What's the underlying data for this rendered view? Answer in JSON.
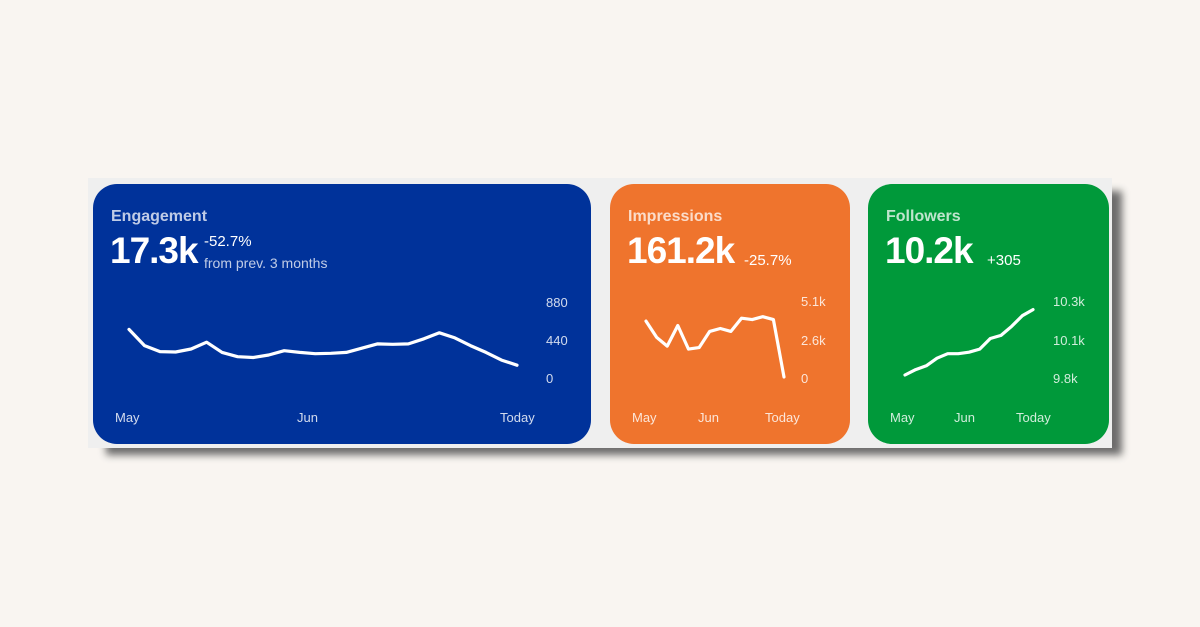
{
  "cards": [
    {
      "title": "Engagement",
      "value": "17.3k",
      "delta": "-52.7%",
      "comparison": "from prev. 3 months",
      "color": "#00329a",
      "chart_data": {
        "type": "line",
        "x_labels": [
          "May",
          "Jun",
          "Today"
        ],
        "y_ticks": [
          "880",
          "440",
          "0"
        ],
        "ylim": [
          0,
          880
        ],
        "values": [
          570,
          380,
          310,
          305,
          340,
          420,
          300,
          250,
          240,
          270,
          320,
          300,
          285,
          290,
          300,
          350,
          400,
          395,
          400,
          460,
          530,
          470,
          380,
          300,
          210,
          150
        ]
      }
    },
    {
      "title": "Impressions",
      "value": "161.2k",
      "delta": "-25.7%",
      "color": "#ef742d",
      "chart_data": {
        "type": "line",
        "x_labels": [
          "May",
          "Jun",
          "Today"
        ],
        "y_ticks": [
          "5.1k",
          "2.6k",
          "0"
        ],
        "ylim": [
          0,
          5100
        ],
        "values": [
          3800,
          2700,
          2100,
          3500,
          1900,
          2000,
          3100,
          3300,
          3100,
          4000,
          3900,
          4100,
          3900,
          0
        ]
      }
    },
    {
      "title": "Followers",
      "value": "10.2k",
      "delta": "+305",
      "color": "#00993a",
      "chart_data": {
        "type": "line",
        "x_labels": [
          "May",
          "Jun",
          "Today"
        ],
        "y_ticks": [
          "10.3k",
          "10.1k",
          "9.8k"
        ],
        "ylim": [
          9800,
          10300
        ],
        "values": [
          9820,
          9855,
          9880,
          9930,
          9960,
          9960,
          9970,
          9990,
          10060,
          10080,
          10140,
          10210,
          10250
        ]
      }
    }
  ]
}
